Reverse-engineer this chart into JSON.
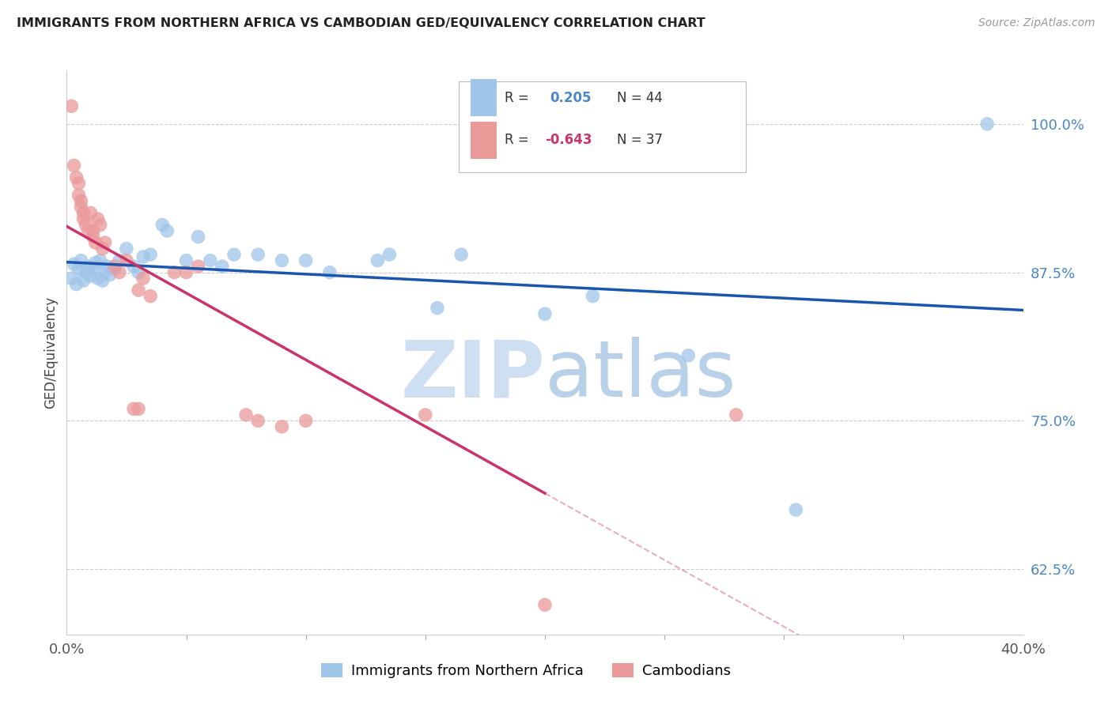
{
  "title": "IMMIGRANTS FROM NORTHERN AFRICA VS CAMBODIAN GED/EQUIVALENCY CORRELATION CHART",
  "source": "Source: ZipAtlas.com",
  "ylabel": "GED/Equivalency",
  "yticks": [
    62.5,
    75.0,
    87.5,
    100.0
  ],
  "ytick_labels": [
    "62.5%",
    "75.0%",
    "87.5%",
    "100.0%"
  ],
  "xlim": [
    0.0,
    40.0
  ],
  "ylim": [
    57.0,
    104.5
  ],
  "blue_R": 0.205,
  "blue_N": 44,
  "pink_R": -0.643,
  "pink_N": 37,
  "blue_color": "#9fc5e8",
  "pink_color": "#ea9999",
  "blue_line_color": "#1a56b0",
  "pink_line_color": "#cc3366",
  "watermark_color_zip": "#cddff0",
  "watermark_color_atlas": "#b8d0e8",
  "legend_label_blue": "Immigrants from Northern Africa",
  "legend_label_pink": "Cambodians",
  "blue_points": [
    [
      0.2,
      87.0
    ],
    [
      0.3,
      88.2
    ],
    [
      0.4,
      86.5
    ],
    [
      0.5,
      87.8
    ],
    [
      0.6,
      88.5
    ],
    [
      0.7,
      86.8
    ],
    [
      0.8,
      87.5
    ],
    [
      0.9,
      88.0
    ],
    [
      1.0,
      87.2
    ],
    [
      1.1,
      87.8
    ],
    [
      1.2,
      88.3
    ],
    [
      1.3,
      87.0
    ],
    [
      1.4,
      88.5
    ],
    [
      1.5,
      86.8
    ],
    [
      1.6,
      87.5
    ],
    [
      1.7,
      88.0
    ],
    [
      1.8,
      87.3
    ],
    [
      2.0,
      87.8
    ],
    [
      2.2,
      88.5
    ],
    [
      2.5,
      89.5
    ],
    [
      2.8,
      88.0
    ],
    [
      3.0,
      87.5
    ],
    [
      3.2,
      88.8
    ],
    [
      3.5,
      89.0
    ],
    [
      4.0,
      91.5
    ],
    [
      4.2,
      91.0
    ],
    [
      5.0,
      88.5
    ],
    [
      5.5,
      90.5
    ],
    [
      6.0,
      88.5
    ],
    [
      6.5,
      88.0
    ],
    [
      7.0,
      89.0
    ],
    [
      8.0,
      89.0
    ],
    [
      9.0,
      88.5
    ],
    [
      10.0,
      88.5
    ],
    [
      11.0,
      87.5
    ],
    [
      13.0,
      88.5
    ],
    [
      13.5,
      89.0
    ],
    [
      15.5,
      84.5
    ],
    [
      16.5,
      89.0
    ],
    [
      20.0,
      84.0
    ],
    [
      22.0,
      85.5
    ],
    [
      26.0,
      80.5
    ],
    [
      30.5,
      67.5
    ],
    [
      38.5,
      100.0
    ]
  ],
  "pink_points": [
    [
      0.2,
      101.5
    ],
    [
      0.3,
      96.5
    ],
    [
      0.4,
      95.5
    ],
    [
      0.5,
      95.0
    ],
    [
      0.5,
      94.0
    ],
    [
      0.6,
      93.5
    ],
    [
      0.6,
      93.0
    ],
    [
      0.7,
      92.5
    ],
    [
      0.7,
      92.0
    ],
    [
      0.8,
      91.5
    ],
    [
      0.9,
      91.0
    ],
    [
      1.0,
      92.5
    ],
    [
      1.1,
      91.0
    ],
    [
      1.1,
      90.5
    ],
    [
      1.2,
      90.0
    ],
    [
      1.3,
      92.0
    ],
    [
      1.4,
      91.5
    ],
    [
      1.5,
      89.5
    ],
    [
      1.6,
      90.0
    ],
    [
      2.0,
      88.0
    ],
    [
      2.2,
      87.5
    ],
    [
      2.5,
      88.5
    ],
    [
      3.0,
      86.0
    ],
    [
      3.2,
      87.0
    ],
    [
      3.5,
      85.5
    ],
    [
      4.5,
      87.5
    ],
    [
      5.0,
      87.5
    ],
    [
      7.5,
      75.5
    ],
    [
      8.0,
      75.0
    ],
    [
      9.0,
      74.5
    ],
    [
      10.0,
      75.0
    ],
    [
      15.0,
      75.5
    ],
    [
      20.0,
      59.5
    ],
    [
      28.0,
      75.5
    ],
    [
      2.8,
      76.0
    ],
    [
      3.0,
      76.0
    ],
    [
      5.5,
      88.0
    ]
  ]
}
